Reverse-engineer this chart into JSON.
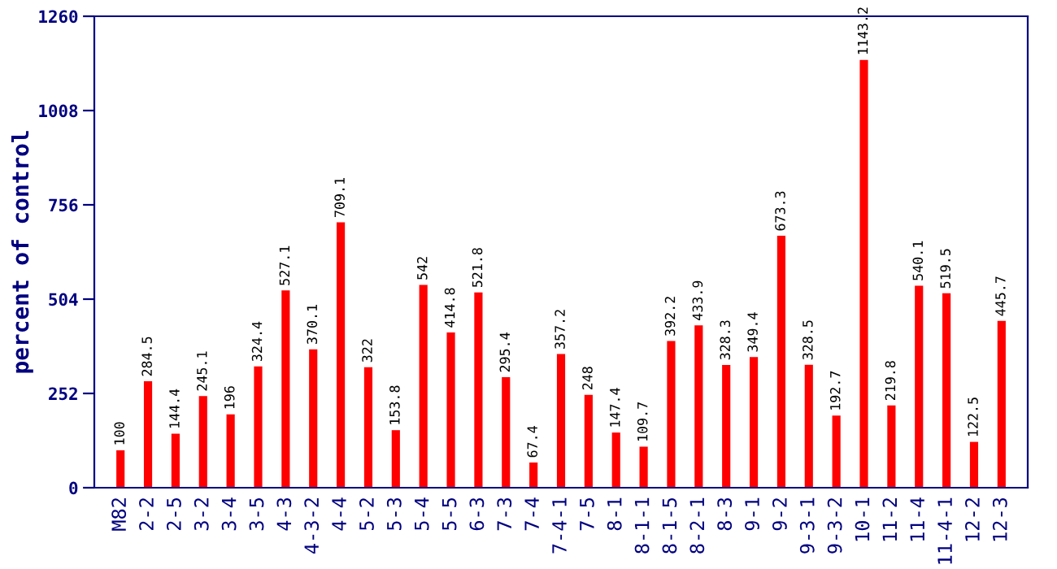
{
  "chart_data": {
    "type": "bar",
    "ylabel": "percent of control",
    "categories": [
      "M82",
      "2-2",
      "2-5",
      "3-2",
      "3-4",
      "3-5",
      "4-3",
      "4-3-2",
      "4-4",
      "5-2",
      "5-3",
      "5-4",
      "5-5",
      "6-3",
      "7-3",
      "7-4",
      "7-4-1",
      "7-5",
      "8-1",
      "8-1-1",
      "8-1-5",
      "8-2-1",
      "8-3",
      "9-1",
      "9-2",
      "9-3-1",
      "9-3-2",
      "10-1",
      "11-2",
      "11-4",
      "11-4-1",
      "12-2",
      "12-3"
    ],
    "values": [
      100,
      284.5,
      144.4,
      245.1,
      196,
      324.4,
      527.1,
      370.1,
      709.1,
      322,
      153.8,
      542,
      414.8,
      521.8,
      295.4,
      67.4,
      357.2,
      248,
      147.4,
      109.7,
      392.2,
      433.9,
      328.3,
      349.4,
      673.3,
      328.5,
      192.7,
      1143.2,
      219.8,
      540.1,
      519.5,
      122.5,
      445.7
    ],
    "color": "#ff0000",
    "ylim": [
      0,
      1260
    ],
    "yticks": [
      0,
      252,
      504,
      756,
      1008,
      1260
    ],
    "data_labels": true,
    "grid": false,
    "legend": false
  }
}
